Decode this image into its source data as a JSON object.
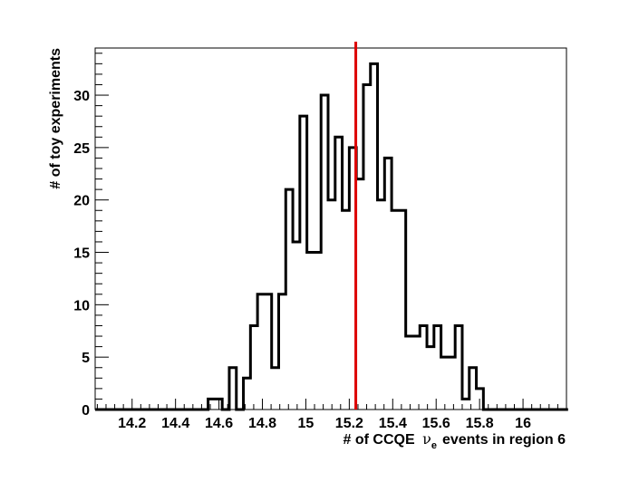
{
  "chart_data": {
    "type": "bar",
    "style": "step-histogram",
    "xlabel": "# of CCQE",
    "xlabel_symbol": "ν",
    "xlabel_subscript": "e",
    "xlabel_rest": "events in region 6",
    "ylabel": "# of toy experiments",
    "xlim": [
      14.03,
      16.2
    ],
    "ylim": [
      0,
      34.5
    ],
    "xticks": [
      14.2,
      14.4,
      14.6,
      14.8,
      15,
      15.2,
      15.4,
      15.6,
      15.8,
      16
    ],
    "xtick_labels": [
      "14.2",
      "14.4",
      "14.6",
      "14.8",
      "15",
      "15.2",
      "15.4",
      "15.6",
      "15.8",
      "16"
    ],
    "yticks": [
      0,
      5,
      10,
      15,
      20,
      25,
      30
    ],
    "ytick_labels": [
      "0",
      "5",
      "10",
      "15",
      "20",
      "25",
      "30"
    ],
    "bins": {
      "start": 14.03,
      "width": 0.0325,
      "values": [
        0,
        0,
        0,
        0,
        0,
        0,
        0,
        0,
        0,
        0,
        0,
        0,
        0,
        0,
        0,
        0,
        1,
        1,
        0,
        4,
        0,
        3,
        8,
        11,
        11,
        4,
        11,
        21,
        16,
        28,
        15,
        15,
        30,
        20,
        26,
        19,
        25,
        22,
        31,
        33,
        20,
        24,
        19,
        19,
        7,
        7,
        8,
        6,
        8,
        5,
        5,
        8,
        1,
        4,
        2,
        0,
        0,
        0,
        0,
        0,
        0,
        0,
        0,
        0,
        0,
        0,
        0
      ]
    },
    "reference_line": {
      "x": 15.23,
      "color": "#dd0000"
    },
    "line_color": "#000000",
    "grid": false,
    "legend": "none"
  }
}
